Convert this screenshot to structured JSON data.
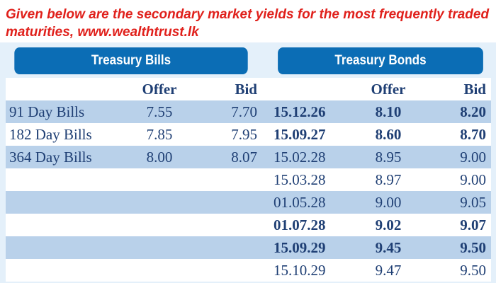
{
  "caption": "Given below are the secondary market yields for the most frequently traded maturities, www.wealthtrust.lk",
  "bills_title": "Treasury Bills",
  "bonds_title": "Treasury Bonds",
  "col_offer": "Offer",
  "col_bid": "Bid",
  "bills": [
    {
      "name": "91 Day Bills",
      "offer": "7.55",
      "bid": "7.70"
    },
    {
      "name": "182 Day Bills",
      "offer": "7.85",
      "bid": "7.95"
    },
    {
      "name": "364 Day Bills",
      "offer": "8.00",
      "bid": "8.07"
    }
  ],
  "bonds": [
    {
      "maturity": "15.12.26",
      "offer": "8.10",
      "bid": "8.20",
      "bold": true
    },
    {
      "maturity": "15.09.27",
      "offer": "8.60",
      "bid": "8.70",
      "bold": true
    },
    {
      "maturity": "15.02.28",
      "offer": "8.95",
      "bid": "9.00",
      "bold": false
    },
    {
      "maturity": "15.03.28",
      "offer": "8.97",
      "bid": "9.00",
      "bold": false
    },
    {
      "maturity": "01.05.28",
      "offer": "9.00",
      "bid": "9.05",
      "bold": false
    },
    {
      "maturity": "01.07.28",
      "offer": "9.02",
      "bid": "9.07",
      "bold": true
    },
    {
      "maturity": "15.09.29",
      "offer": "9.45",
      "bid": "9.50",
      "bold": true
    },
    {
      "maturity": "15.10.29",
      "offer": "9.47",
      "bid": "9.50",
      "bold": false
    }
  ]
}
